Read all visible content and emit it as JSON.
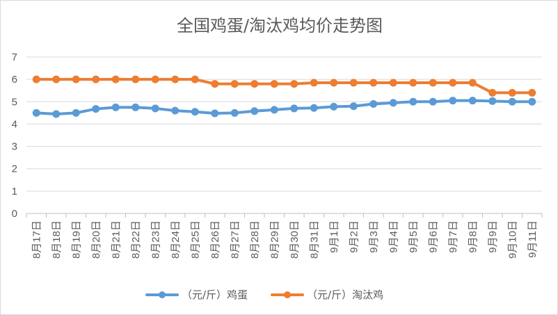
{
  "chart_data": {
    "type": "line",
    "title": "全国鸡蛋/淘汰鸡均价走势图",
    "xlabel": "",
    "ylabel": "",
    "ylim": [
      0,
      7
    ],
    "yticks": [
      "0",
      "1",
      "2",
      "3",
      "4",
      "5",
      "6",
      "7"
    ],
    "grid": true,
    "legend_position": "bottom",
    "categories": [
      "8月17日",
      "8月18日",
      "8月19日",
      "8月20日",
      "8月21日",
      "8月22日",
      "8月23日",
      "8月24日",
      "8月25日",
      "8月26日",
      "8月27日",
      "8月28日",
      "8月29日",
      "8月30日",
      "8月31日",
      "9月1日",
      "9月2日",
      "9月3日",
      "9月4日",
      "9月5日",
      "9月6日",
      "9月7日",
      "9月8日",
      "9月9日",
      "9月10日",
      "9月11日"
    ],
    "series": [
      {
        "name": "（元/斤）鸡蛋",
        "color": "#5b9bd5",
        "values": [
          4.5,
          4.45,
          4.5,
          4.68,
          4.75,
          4.75,
          4.7,
          4.6,
          4.55,
          4.48,
          4.5,
          4.58,
          4.64,
          4.7,
          4.72,
          4.78,
          4.8,
          4.9,
          4.95,
          5.0,
          5.0,
          5.05,
          5.05,
          5.03,
          5.0,
          5.0
        ]
      },
      {
        "name": "（元/斤）淘汰鸡",
        "color": "#ed7d31",
        "values": [
          6.0,
          6.0,
          6.0,
          6.0,
          6.0,
          6.0,
          6.0,
          6.0,
          6.0,
          5.8,
          5.8,
          5.8,
          5.8,
          5.8,
          5.85,
          5.85,
          5.85,
          5.85,
          5.85,
          5.85,
          5.85,
          5.85,
          5.85,
          5.4,
          5.4,
          5.4
        ]
      }
    ]
  }
}
